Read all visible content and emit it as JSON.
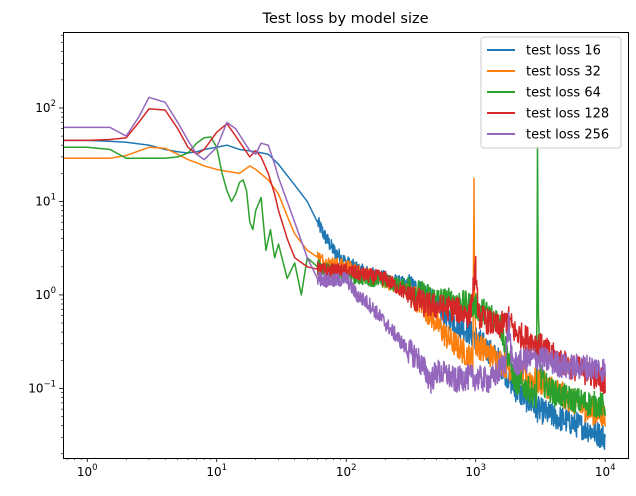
{
  "chart_data": {
    "type": "line",
    "title": "Test loss by model size",
    "xlabel": "",
    "ylabel": "",
    "xscale": "log",
    "yscale": "log",
    "xlim": [
      0.65,
      15000
    ],
    "ylim": [
      0.018,
      650
    ],
    "grid": false,
    "legend_position": "top-right",
    "x_ticks": [
      {
        "value": 1,
        "base": "10",
        "exp": "0"
      },
      {
        "value": 10,
        "base": "10",
        "exp": "1"
      },
      {
        "value": 100,
        "base": "10",
        "exp": "2"
      },
      {
        "value": 1000,
        "base": "10",
        "exp": "3"
      },
      {
        "value": 10000,
        "base": "10",
        "exp": "4"
      }
    ],
    "y_ticks": [
      {
        "value": 0.1,
        "base": "10",
        "exp": "−1"
      },
      {
        "value": 1,
        "base": "10",
        "exp": "0"
      },
      {
        "value": 10,
        "base": "10",
        "exp": "1"
      },
      {
        "value": 100,
        "base": "10",
        "exp": "2"
      }
    ],
    "series": [
      {
        "name": "test loss 16",
        "color": "#1f77b4",
        "points": [
          [
            0.65,
            45
          ],
          [
            1,
            45
          ],
          [
            1.5,
            44
          ],
          [
            2,
            43
          ],
          [
            3,
            40
          ],
          [
            4,
            36
          ],
          [
            5,
            34
          ],
          [
            6,
            33
          ],
          [
            7,
            34
          ],
          [
            8,
            36
          ],
          [
            10,
            38
          ],
          [
            12,
            40
          ],
          [
            15,
            36
          ],
          [
            20,
            34
          ],
          [
            25,
            32
          ],
          [
            30,
            25
          ],
          [
            35,
            19
          ],
          [
            40,
            15
          ],
          [
            50,
            10
          ],
          [
            60,
            6
          ],
          [
            70,
            4
          ],
          [
            80,
            3
          ],
          [
            100,
            2.2
          ],
          [
            130,
            1.8
          ],
          [
            170,
            1.6
          ],
          [
            220,
            1.45
          ],
          [
            300,
            1.25
          ],
          [
            400,
            1.0
          ],
          [
            500,
            0.75
          ],
          [
            600,
            0.6
          ],
          [
            800,
            0.45
          ],
          [
            1000,
            0.35
          ],
          [
            1500,
            0.2
          ],
          [
            2000,
            0.1
          ],
          [
            3000,
            0.06
          ],
          [
            4000,
            0.05
          ],
          [
            5000,
            0.045
          ],
          [
            7000,
            0.038
          ],
          [
            10000,
            0.03
          ]
        ]
      },
      {
        "name": "test loss 32",
        "color": "#ff7f0e",
        "points": [
          [
            0.65,
            29
          ],
          [
            1,
            29
          ],
          [
            1.5,
            29
          ],
          [
            2,
            31
          ],
          [
            3,
            38
          ],
          [
            4,
            37
          ],
          [
            5,
            32
          ],
          [
            6,
            28
          ],
          [
            7,
            26
          ],
          [
            8,
            24
          ],
          [
            10,
            22
          ],
          [
            12,
            21
          ],
          [
            15,
            20
          ],
          [
            18,
            24
          ],
          [
            20,
            22
          ],
          [
            25,
            17
          ],
          [
            30,
            12
          ],
          [
            35,
            7
          ],
          [
            40,
            4.5
          ],
          [
            50,
            3
          ],
          [
            70,
            2.2
          ],
          [
            100,
            2.0
          ],
          [
            150,
            1.6
          ],
          [
            200,
            1.4
          ],
          [
            300,
            1.1
          ],
          [
            400,
            0.75
          ],
          [
            500,
            0.5
          ],
          [
            600,
            0.35
          ],
          [
            800,
            0.25
          ],
          [
            950,
            0.2
          ],
          [
            970,
            13.5
          ],
          [
            980,
            1.2
          ],
          [
            1000,
            0.3
          ],
          [
            1500,
            0.2
          ],
          [
            2000,
            0.15
          ],
          [
            3000,
            0.12
          ],
          [
            4000,
            0.1
          ],
          [
            5000,
            0.08
          ],
          [
            7000,
            0.06
          ],
          [
            10000,
            0.05
          ]
        ]
      },
      {
        "name": "test loss 64",
        "color": "#2ca02c",
        "points": [
          [
            0.65,
            38
          ],
          [
            1,
            38
          ],
          [
            1.5,
            36
          ],
          [
            2,
            29
          ],
          [
            3,
            29
          ],
          [
            4,
            29
          ],
          [
            5,
            30
          ],
          [
            6,
            33
          ],
          [
            7,
            42
          ],
          [
            8,
            48
          ],
          [
            9,
            49
          ],
          [
            10,
            38
          ],
          [
            11,
            20
          ],
          [
            12,
            13
          ],
          [
            13,
            10
          ],
          [
            14,
            12
          ],
          [
            15,
            16
          ],
          [
            16,
            17
          ],
          [
            17,
            13
          ],
          [
            18,
            6
          ],
          [
            19,
            5
          ],
          [
            20,
            8
          ],
          [
            22,
            11
          ],
          [
            24,
            3
          ],
          [
            26,
            5
          ],
          [
            28,
            2.5
          ],
          [
            30,
            3.5
          ],
          [
            35,
            1.5
          ],
          [
            40,
            2.2
          ],
          [
            45,
            1.0
          ],
          [
            50,
            2.5
          ],
          [
            60,
            2.0
          ],
          [
            80,
            1.8
          ],
          [
            100,
            1.6
          ],
          [
            150,
            1.5
          ],
          [
            200,
            1.4
          ],
          [
            300,
            1.2
          ],
          [
            400,
            1.0
          ],
          [
            500,
            0.9
          ],
          [
            700,
            0.85
          ],
          [
            1000,
            0.75
          ],
          [
            1500,
            0.55
          ],
          [
            2000,
            0.12
          ],
          [
            2500,
            0.1
          ],
          [
            2950,
            0.08
          ],
          [
            3000,
            33
          ],
          [
            3050,
            0.5
          ],
          [
            3200,
            0.12
          ],
          [
            4000,
            0.09
          ],
          [
            5000,
            0.08
          ],
          [
            7000,
            0.07
          ],
          [
            10000,
            0.065
          ]
        ]
      },
      {
        "name": "test loss 128",
        "color": "#d62728",
        "points": [
          [
            0.65,
            45
          ],
          [
            1,
            45
          ],
          [
            1.5,
            46
          ],
          [
            2,
            48
          ],
          [
            2.5,
            70
          ],
          [
            3,
            98
          ],
          [
            4,
            95
          ],
          [
            5,
            60
          ],
          [
            6,
            38
          ],
          [
            7,
            32
          ],
          [
            8,
            36
          ],
          [
            10,
            55
          ],
          [
            12,
            68
          ],
          [
            14,
            50
          ],
          [
            16,
            38
          ],
          [
            18,
            30
          ],
          [
            20,
            35
          ],
          [
            22,
            30
          ],
          [
            25,
            20
          ],
          [
            28,
            12
          ],
          [
            30,
            8
          ],
          [
            35,
            4
          ],
          [
            40,
            2.5
          ],
          [
            50,
            2.0
          ],
          [
            70,
            1.8
          ],
          [
            100,
            1.8
          ],
          [
            150,
            1.6
          ],
          [
            200,
            1.5
          ],
          [
            300,
            1.0
          ],
          [
            400,
            0.8
          ],
          [
            500,
            0.75
          ],
          [
            700,
            0.7
          ],
          [
            900,
            0.6
          ],
          [
            1000,
            1.9
          ],
          [
            1050,
            0.6
          ],
          [
            1300,
            0.5
          ],
          [
            1500,
            0.45
          ],
          [
            1800,
            0.55
          ],
          [
            2000,
            0.4
          ],
          [
            3000,
            0.3
          ],
          [
            4000,
            0.22
          ],
          [
            5000,
            0.18
          ],
          [
            7000,
            0.15
          ],
          [
            10000,
            0.12
          ]
        ]
      },
      {
        "name": "test loss 256",
        "color": "#9467bd",
        "points": [
          [
            0.65,
            62
          ],
          [
            1,
            62
          ],
          [
            1.5,
            62
          ],
          [
            2,
            50
          ],
          [
            2.5,
            80
          ],
          [
            3,
            130
          ],
          [
            4,
            115
          ],
          [
            5,
            70
          ],
          [
            6,
            45
          ],
          [
            7,
            32
          ],
          [
            8,
            28
          ],
          [
            10,
            38
          ],
          [
            12,
            70
          ],
          [
            14,
            60
          ],
          [
            16,
            45
          ],
          [
            18,
            35
          ],
          [
            20,
            32
          ],
          [
            22,
            42
          ],
          [
            25,
            40
          ],
          [
            28,
            25
          ],
          [
            30,
            18
          ],
          [
            35,
            10
          ],
          [
            40,
            6
          ],
          [
            50,
            2.5
          ],
          [
            60,
            1.5
          ],
          [
            80,
            1.4
          ],
          [
            100,
            1.5
          ],
          [
            120,
            1.0
          ],
          [
            150,
            0.8
          ],
          [
            200,
            0.5
          ],
          [
            250,
            0.35
          ],
          [
            300,
            0.25
          ],
          [
            350,
            0.22
          ],
          [
            400,
            0.16
          ],
          [
            450,
            0.12
          ],
          [
            500,
            0.15
          ],
          [
            600,
            0.14
          ],
          [
            700,
            0.12
          ],
          [
            800,
            0.13
          ],
          [
            1000,
            0.13
          ],
          [
            1300,
            0.12
          ],
          [
            1500,
            0.15
          ],
          [
            1700,
            0.2
          ],
          [
            1800,
            0.5
          ],
          [
            1900,
            0.2
          ],
          [
            2000,
            0.18
          ],
          [
            2500,
            0.2
          ],
          [
            3000,
            0.21
          ],
          [
            4000,
            0.19
          ],
          [
            5000,
            0.17
          ],
          [
            7000,
            0.17
          ],
          [
            10000,
            0.16
          ]
        ]
      }
    ]
  }
}
